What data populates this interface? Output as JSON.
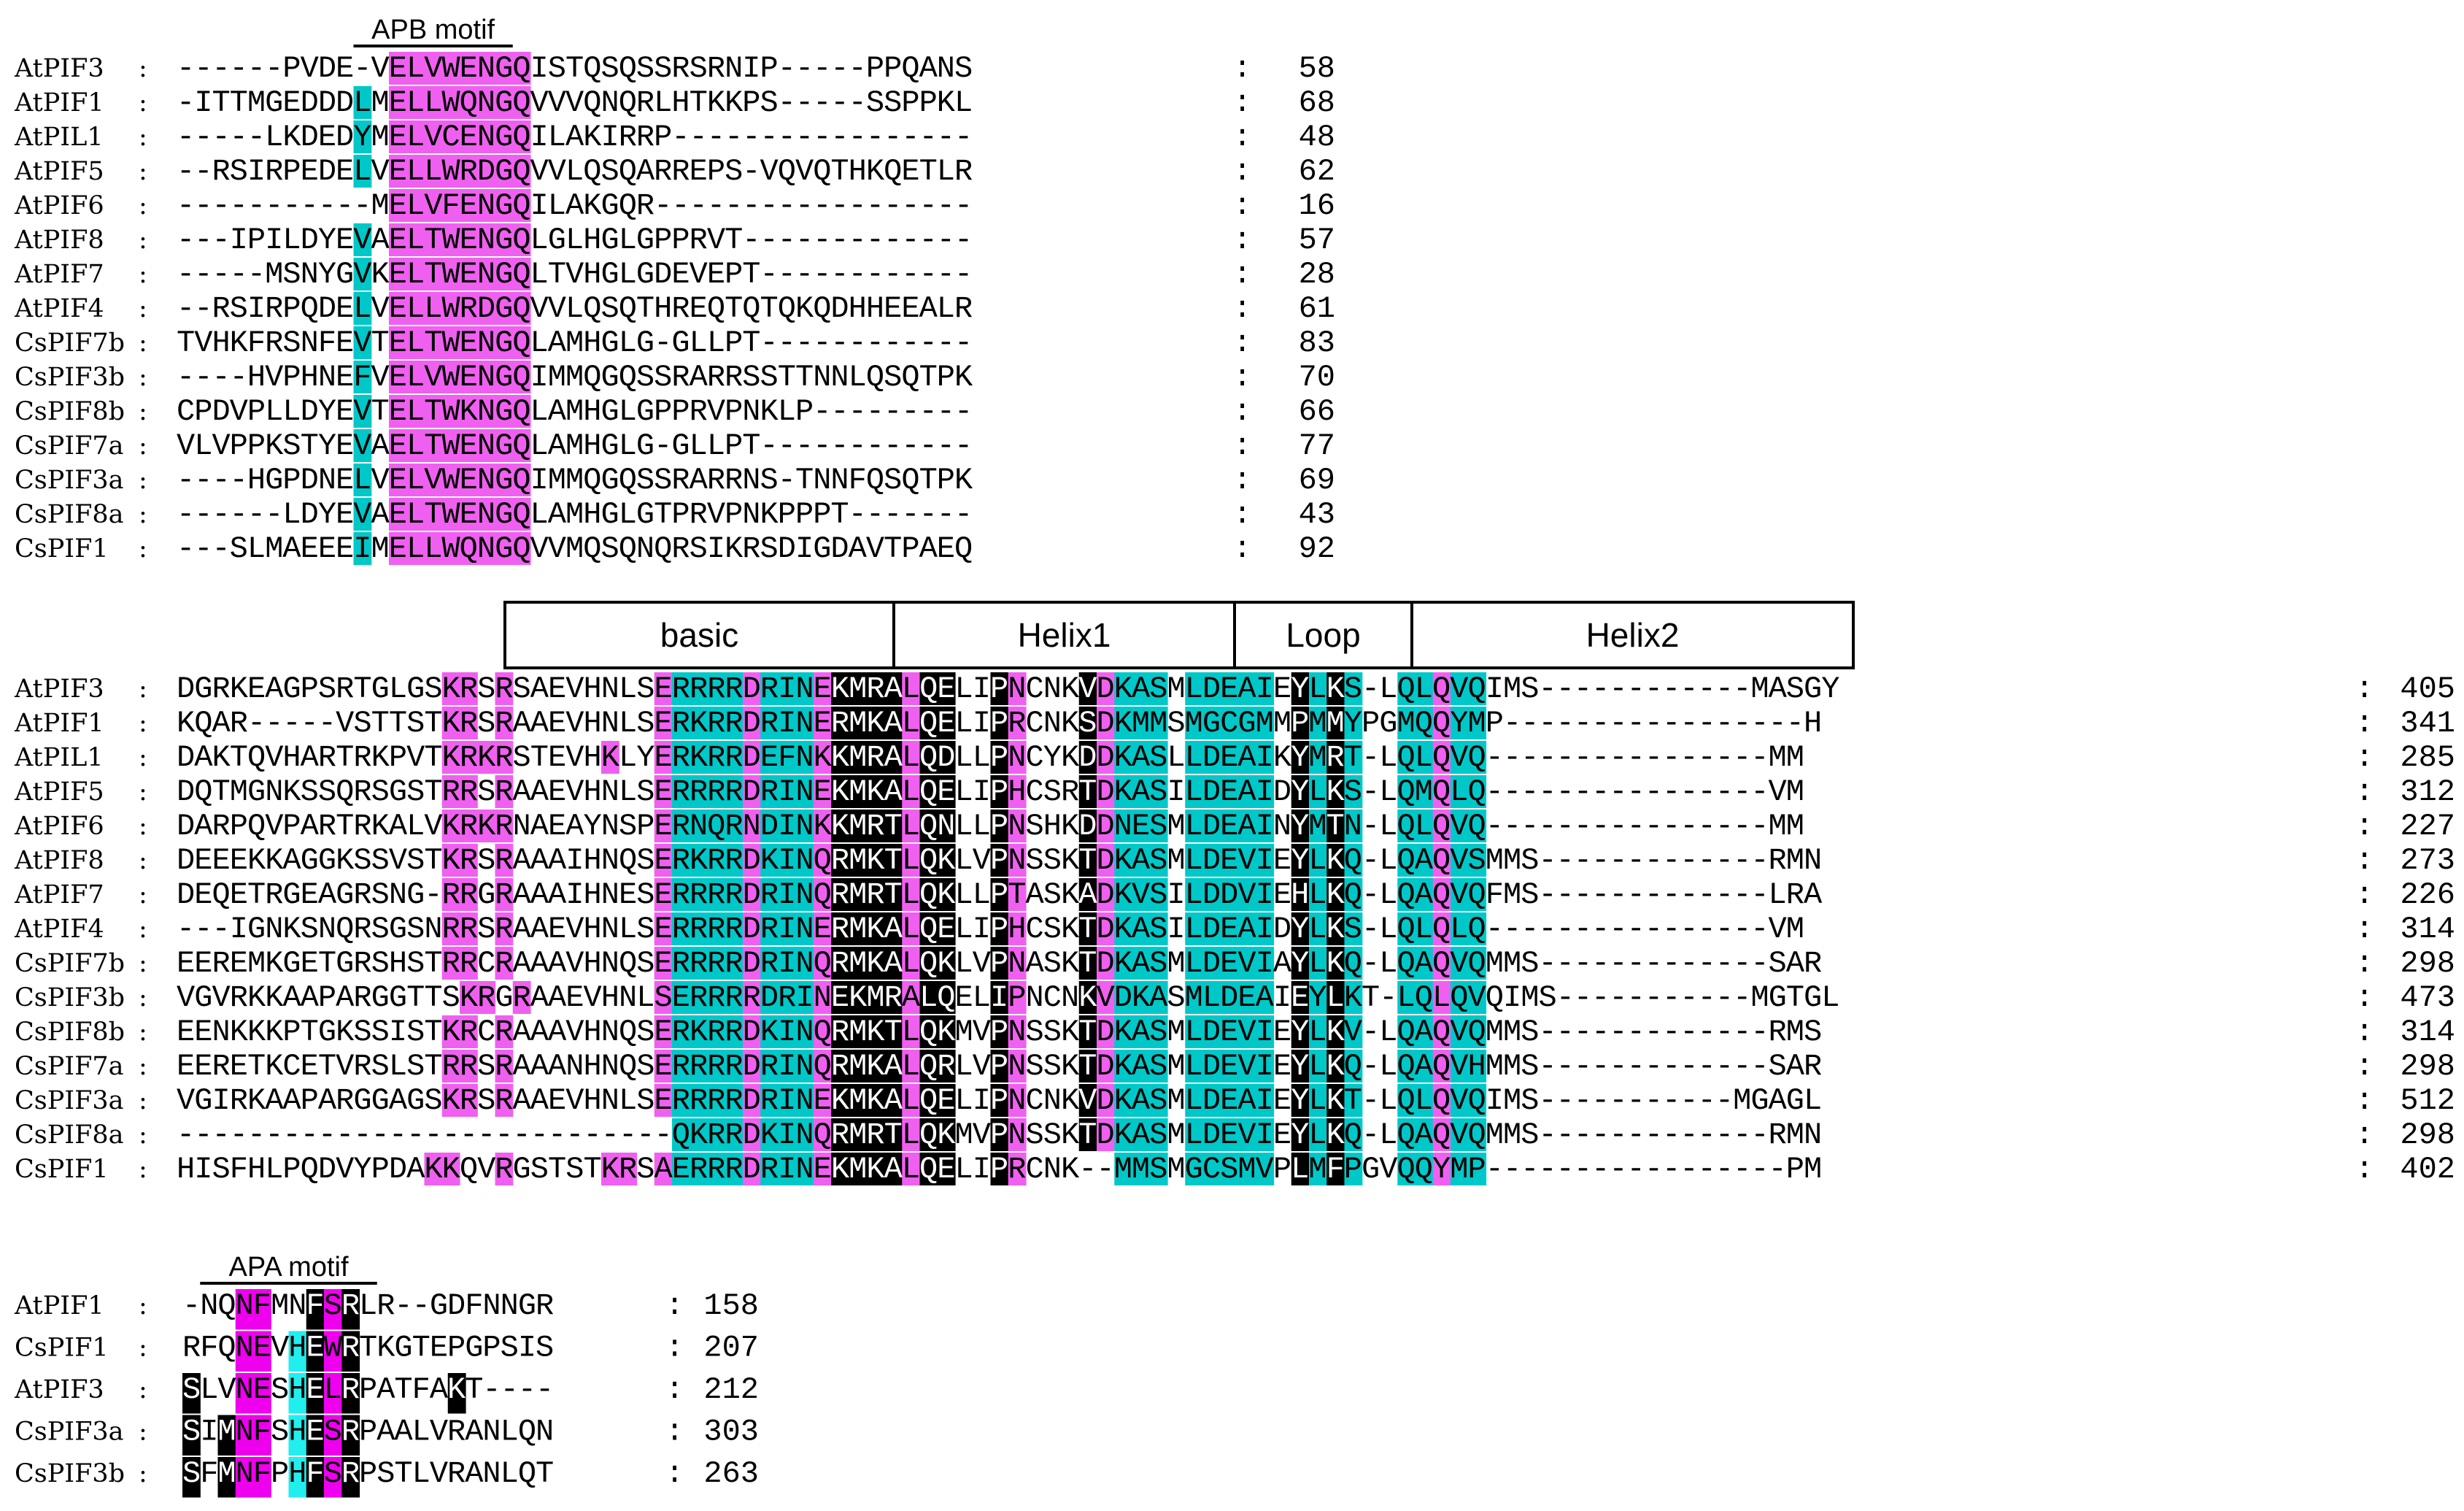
{
  "colors": {
    "identical": "#000000",
    "conserved": "#00c8c8",
    "similar": "#f060f0",
    "apb_blue": "#1577b7",
    "apa_magenta": "#ee00ee",
    "apa_cyan": "#22eeee"
  },
  "blocks": [
    {
      "id": "apb",
      "motif": {
        "label": "APB motif",
        "from": 10,
        "to": 19
      },
      "domains": [],
      "rows": [
        {
          "name": "AtPIF3",
          "seq": "------PVDE-VELVWENGQISTQSQSSRSRNIP-----PPQANS",
          "end": "58"
        },
        {
          "name": "AtPIF1",
          "seq": "-ITTMGEDDDLMELLWQNGQVVVQNQRLHTKKPS-----SSPPKL",
          "end": "68"
        },
        {
          "name": "AtPIL1",
          "seq": "-----LKDEDYMELVCENGQILAKIRRP-----------------",
          "end": "48"
        },
        {
          "name": "AtPIF5",
          "seq": "--RSIRPEDELVELLWRDGQVVLQSQARREPS-VQVQTHKQETLR",
          "end": "62"
        },
        {
          "name": "AtPIF6",
          "seq": "-----------MELVFENGQILAKGQR------------------",
          "end": "16"
        },
        {
          "name": "AtPIF8",
          "seq": "---IPILDYEVAELTWENGQLGLHGLGPPRVT-------------",
          "end": "57"
        },
        {
          "name": "AtPIF7",
          "seq": "-----MSNYGVKELTWENGQLTVHGLGDEVEPT------------",
          "end": "28"
        },
        {
          "name": "AtPIF4",
          "seq": "--RSIRPQDELVELLWRDGQVVLQSQTHREQTQTQKQDHHEEALR",
          "end": "61"
        },
        {
          "name": "CsPIF7b",
          "seq": "TVHKFRSNFEVTELTWENGQLAMHGLG-GLLPT------------",
          "end": "83"
        },
        {
          "name": "CsPIF3b",
          "seq": "----HVPHNEFVELVWENGQIMMQGQSSRARRSSTTNNLQSQTPK",
          "end": "70"
        },
        {
          "name": "CsPIF8b",
          "seq": "CPDVPLLDYEVTELTWKNGQLAMHGLGPPRVPNKLP---------",
          "end": "66"
        },
        {
          "name": "CsPIF7a",
          "seq": "VLVPPKSTYEVAELTWENGQLAMHGLG-GLLPT------------",
          "end": "77"
        },
        {
          "name": "CsPIF3a",
          "seq": "----HGPDNELVELVWENGQIMMQGQSSRARRNS-TNNFQSQTPK",
          "end": "69"
        },
        {
          "name": "CsPIF8a",
          "seq": "------LDYEVAELTWENGQLAMHGLGTPRVPNKPPPT-------",
          "end": "43"
        },
        {
          "name": "CsPIF1",
          "seq": "---SLMAEEEIMELLWQNGQVVMQSQNQRSIKRSDIGDAVTPAEQ",
          "end": "92"
        }
      ]
    },
    {
      "id": "bhlh",
      "motif": null,
      "domains": [
        {
          "label": "basic",
          "from": 9,
          "to": 20
        },
        {
          "label": "Helix1",
          "from": 20,
          "to": 30
        },
        {
          "label": "Loop",
          "from": 30,
          "to": 35
        },
        {
          "label": "Helix2",
          "from": 35,
          "to": 48
        }
      ],
      "rows": [
        {
          "name": "AtPIF3",
          "seq": "DGRKEAGPSRTGLGSKRSRSAEVHNLSERRRRDRINEKMRALQELIPNCNKVDKASMLDEAIEYLKS-LQLQVQIMS------------MASGY",
          "end": "405"
        },
        {
          "name": "AtPIF1",
          "seq": "KQAR-----VSTTSTKRSRAAEVHNLSERKRRDRINERMKALQELIPRCNKSDKMMSMGCGMMPMMYPGMQQYMP-----------------H",
          "end": "341"
        },
        {
          "name": "AtPIL1",
          "seq": "DAKTQVHARTRKPVTKRKRSTEVHKLYERKRRDEFNKKMRALQDLLPNCYKDDKASLLDEAIKYMRT-LQLQVQ----------------MM",
          "end": "285"
        },
        {
          "name": "AtPIF5",
          "seq": "DQTMGNKSSQRSGSTRRSRAAEVHNLSERRRRDRINEKMKALQELIPHCSRTDKASILDEAIDYLKS-LQMQLQ----------------VM",
          "end": "312"
        },
        {
          "name": "AtPIF6",
          "seq": "DARPQVPARTRKALVKRKRNAEAYNSPERNQRNDINKKMRTLQNLLPNSHKDDNESMLDEAINYMTN-LQLQVQ----------------MM",
          "end": "227"
        },
        {
          "name": "AtPIF8",
          "seq": "DEEEKKAGGKSSVSTKRSRAAAIHNQSERKRRDKINQRMKTLQKLVPNSSKTDKASMLDEVIEYLKQ-LQAQVSMMS-------------RMN",
          "end": "273"
        },
        {
          "name": "AtPIF7",
          "seq": "DEQETRGEAGRSNG-RRGRAAAIHNESERRRRDRINQRMRTLQKLLPTASKADKVSILDDVIEHLKQ-LQAQVQFMS-------------LRA",
          "end": "226"
        },
        {
          "name": "AtPIF4",
          "seq": "---IGNKSNQRSGSNRRSRAAEVHNLSERRRRDRINERMKALQELIPHCSKTDKASILDEAIDYLKS-LQLQLQ----------------VM",
          "end": "314"
        },
        {
          "name": "CsPIF7b",
          "seq": "EEREMKGETGRSHSTRRCRAAAVHNQSERRRRDRINQRMKALQKLVPNASKTDKASMLDEVIAYLKQ-LQAQVQMMS-------------SAR",
          "end": "298"
        },
        {
          "name": "CsPIF3b",
          "seq": "VGVRKKAAPARGGTTSKRGRAAEVHNLSERRRRDRINEKMRALQELIPNCNKVDKASMLDEAIEYLKT-LQLQVQIMS-----------MGTGL",
          "end": "473"
        },
        {
          "name": "CsPIF8b",
          "seq": "EENKKKPTGKSSISTKRCRAAAVHNQSERKRRDKINQRMKTLQKMVPNSSKTDKASMLDEVIEYLKV-LQAQVQMMS-------------RMS",
          "end": "314"
        },
        {
          "name": "CsPIF7a",
          "seq": "EERETKCETVRSLSTRRSRAAANHNQSERRRRDRINQRMKALQRLVPNSSKTDKASMLDEVIEYLKQ-LQAQVHMMS-------------SAR",
          "end": "298"
        },
        {
          "name": "CsPIF3a",
          "seq": "VGIRKAAPARGGAGSKRSRAAEVHNLSERRRRDRINEKMKALQELIPNCNKVDKASMLDEAIEYLKT-LQLQVQIMS-----------MGAGL",
          "end": "512"
        },
        {
          "name": "CsPIF8a",
          "seq": "----------------------------QKRRDKINQRMRTLQKMVPNSSKTDKASMLDEVIEYLKQ-LQAQVQMMS-------------RMN",
          "end": "298"
        },
        {
          "name": "CsPIF1",
          "seq": "HISFHLPQDVYPDAKKQVRGSTSTKRSAERRRDRINEKMKALQELIPRCNK--MMSMGCSMVPLMFPGVQQYMP-----------------PM",
          "end": "402"
        }
      ]
    },
    {
      "id": "apa",
      "motif": {
        "label": "APA motif",
        "from": 1,
        "to": 11
      },
      "domains": [],
      "rows": [
        {
          "name": "AtPIF1",
          "seq": "-NQNFMNFSRLR--GDFNNGR",
          "end": "158"
        },
        {
          "name": "CsPIF1",
          "seq": "RFQNEVHEWRTKGTEPGPSIS",
          "end": "207"
        },
        {
          "name": "AtPIF3",
          "seq": "SLVNESHELRPATFAKT----",
          "end": "212"
        },
        {
          "name": "CsPIF3a",
          "seq": "SIMNFSHESRPAALVRANLQN",
          "end": "303"
        },
        {
          "name": "CsPIF3b",
          "seq": "SFMNFPHFSRPSTLVRANLQT",
          "end": "263"
        }
      ]
    }
  ]
}
